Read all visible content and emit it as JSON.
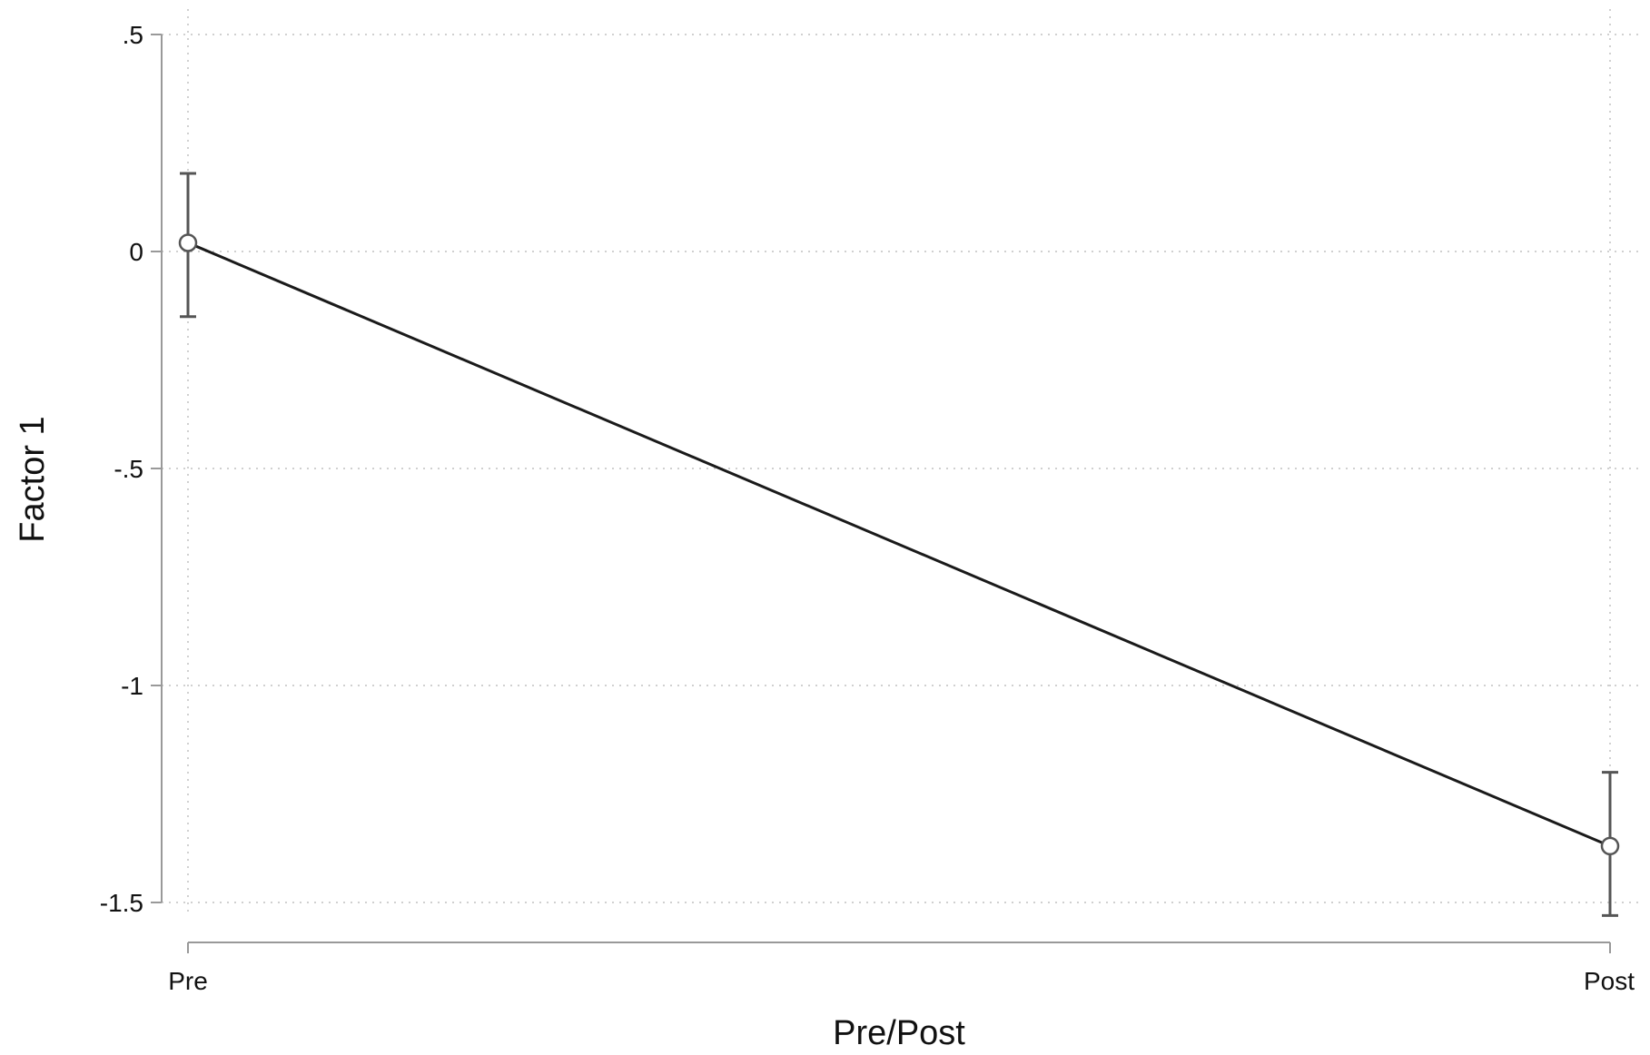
{
  "chart_data": {
    "type": "line",
    "xlabel": "Pre/Post",
    "ylabel": "Factor 1",
    "categories": [
      "Pre",
      "Post"
    ],
    "series": [
      {
        "values": [
          0.02,
          -1.37
        ],
        "ci_lower": [
          -0.15,
          -1.53
        ],
        "ci_upper": [
          0.18,
          -1.2
        ]
      }
    ],
    "ylim": [
      -1.5,
      0.5
    ],
    "y_ticks": [
      0.5,
      0,
      -0.5,
      -1,
      -1.5
    ],
    "y_tick_labels": [
      ".5",
      "0",
      "-.5",
      "-1",
      "-1.5"
    ],
    "grid": true,
    "colors": {
      "line": "#1a1a1a",
      "marker": "#555555",
      "ci": "#555555",
      "axis": "#999999",
      "grid": "#d0d0d0"
    }
  }
}
